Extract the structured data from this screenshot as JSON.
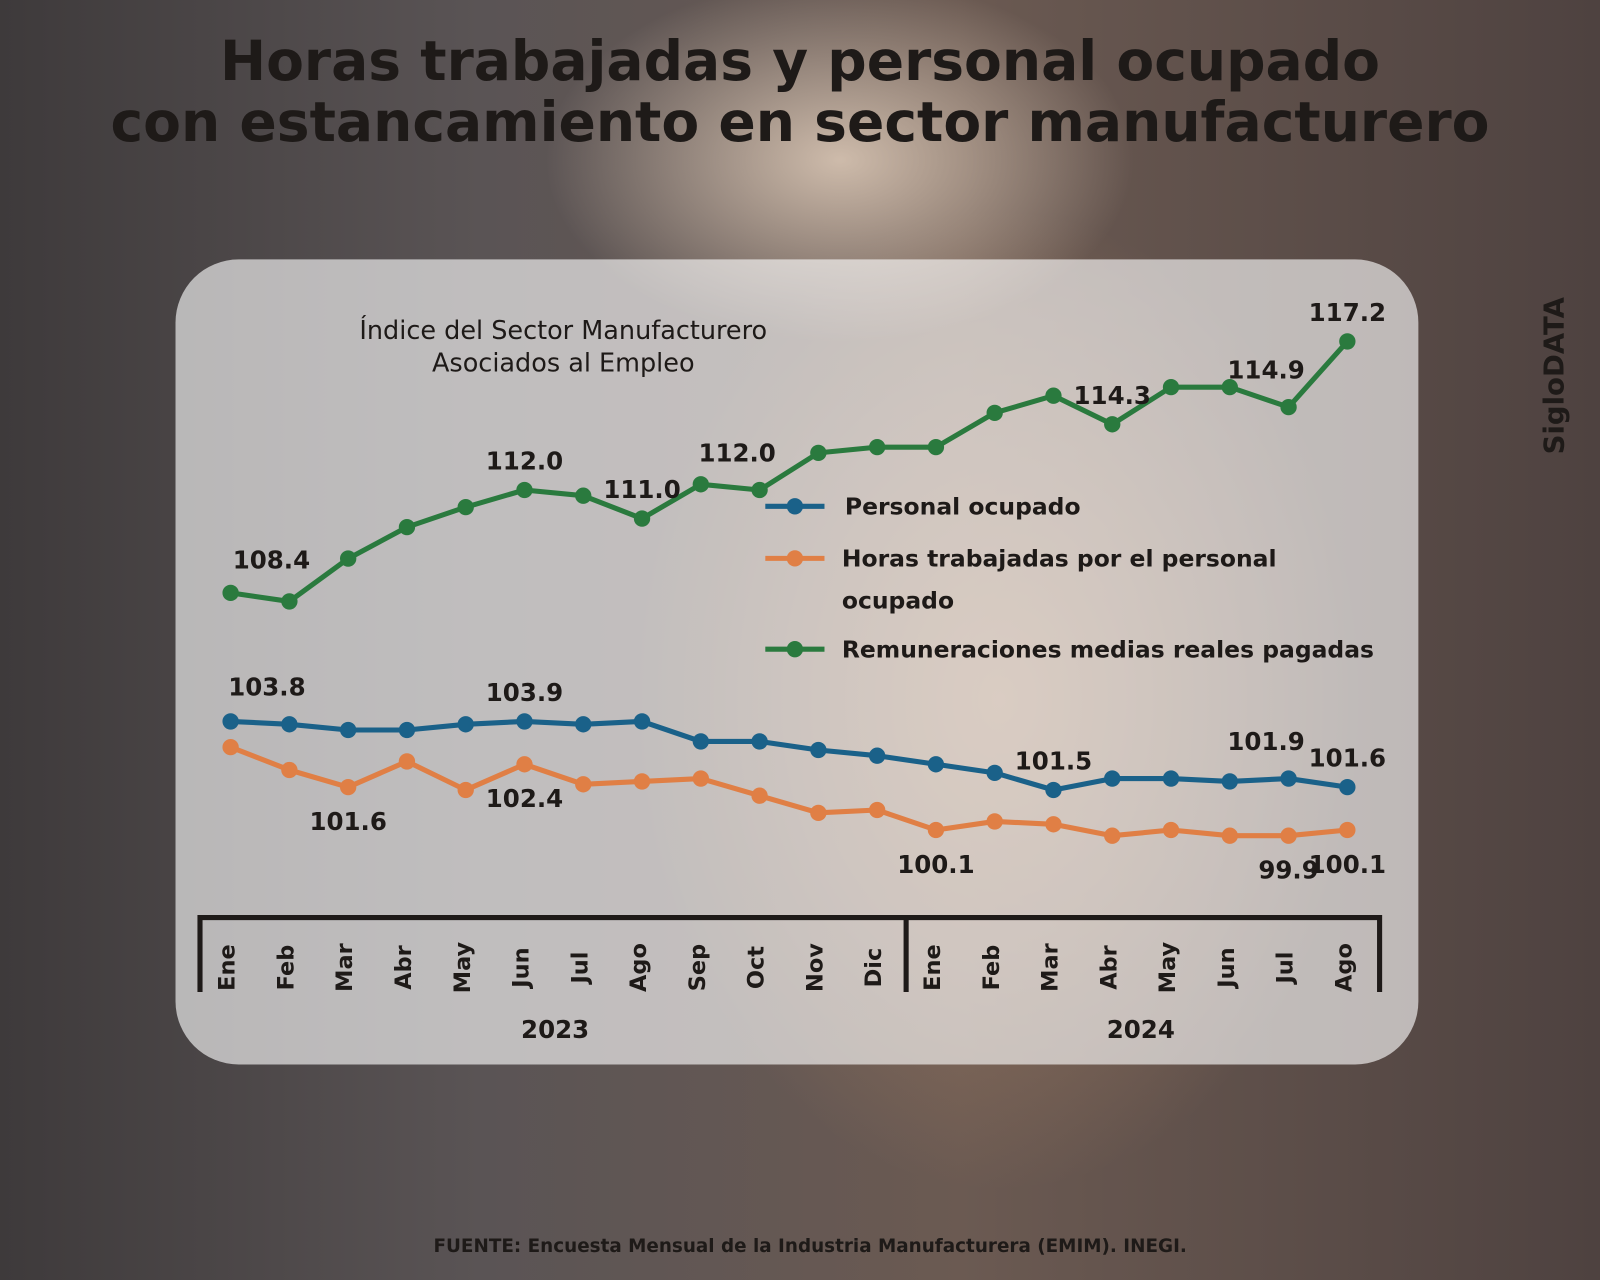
{
  "title_lines": [
    "Horas trabajadas y personal ocupado",
    "con estancamiento en sector manufacturero"
  ],
  "brand": "SigloDATA",
  "source": "FUENTE: Encuesta Mensual de la Industria Manufacturera (EMIM). INEGI.",
  "chart_data": {
    "type": "line",
    "title": [
      "Índice del Sector Manufacturero",
      "Asociados al Empleo"
    ],
    "categories": [
      "Ene",
      "Feb",
      "Mar",
      "Abr",
      "May",
      "Jun",
      "Jul",
      "Ago",
      "Sep",
      "Oct",
      "Nov",
      "Dic",
      "Ene",
      "Feb",
      "Mar",
      "Abr",
      "May",
      "Jun",
      "Jul",
      "Ago"
    ],
    "years": [
      {
        "label": "2023",
        "months": 12
      },
      {
        "label": "2024",
        "months": 8
      }
    ],
    "ylim": [
      99,
      118
    ],
    "grid": false,
    "legend_position": "center-right",
    "series": [
      {
        "name": "Personal ocupado",
        "color": "#1a6189",
        "values": [
          103.9,
          103.8,
          103.6,
          103.6,
          103.8,
          103.9,
          103.8,
          103.9,
          103.2,
          103.2,
          102.9,
          102.7,
          102.4,
          102.1,
          101.5,
          101.9,
          101.9,
          101.8,
          101.9,
          101.6
        ]
      },
      {
        "name": "Horas trabajadas por el personal ocupado",
        "legend_lines": [
          "Horas trabajadas por el personal",
          "ocupado"
        ],
        "color": "#e07f45",
        "values": [
          103.0,
          102.2,
          101.6,
          102.5,
          101.5,
          102.4,
          101.7,
          101.8,
          101.9,
          101.3,
          100.7,
          100.8,
          100.1,
          100.4,
          100.3,
          99.9,
          100.1,
          99.9,
          99.9,
          100.1
        ]
      },
      {
        "name": "Remuneraciones medias reales pagadas",
        "color": "#2a7a3e",
        "values": [
          108.4,
          108.1,
          109.6,
          110.7,
          111.4,
          112.0,
          111.8,
          111.0,
          112.2,
          112.0,
          113.3,
          113.5,
          113.5,
          114.7,
          115.3,
          114.3,
          115.6,
          115.6,
          114.9,
          117.2
        ]
      }
    ],
    "data_labels": [
      {
        "series": 2,
        "index": 0,
        "text": "108.4",
        "pos": "above-right"
      },
      {
        "series": 2,
        "index": 5,
        "text": "112.0",
        "pos": "above"
      },
      {
        "series": 2,
        "index": 7,
        "text": "111.0",
        "pos": "above"
      },
      {
        "series": 2,
        "index": 9,
        "text": "112.0",
        "pos": "above-left"
      },
      {
        "series": 2,
        "index": 15,
        "text": "114.3",
        "pos": "above"
      },
      {
        "series": 2,
        "index": 18,
        "text": "114.9",
        "pos": "above-left"
      },
      {
        "series": 2,
        "index": 19,
        "text": "117.2",
        "pos": "above"
      },
      {
        "series": 0,
        "index": 1,
        "text": "103.8",
        "pos": "above-left"
      },
      {
        "series": 0,
        "index": 5,
        "text": "103.9",
        "pos": "above"
      },
      {
        "series": 0,
        "index": 14,
        "text": "101.5",
        "pos": "above"
      },
      {
        "series": 0,
        "index": 18,
        "text": "101.9",
        "pos": "above-left"
      },
      {
        "series": 0,
        "index": 19,
        "text": "101.6",
        "pos": "above"
      },
      {
        "series": 1,
        "index": 2,
        "text": "101.6",
        "pos": "below"
      },
      {
        "series": 1,
        "index": 5,
        "text": "102.4",
        "pos": "below"
      },
      {
        "series": 1,
        "index": 12,
        "text": "100.1",
        "pos": "below"
      },
      {
        "series": 1,
        "index": 18,
        "text": "99.9",
        "pos": "below"
      },
      {
        "series": 1,
        "index": 19,
        "text": "100.1",
        "pos": "below"
      }
    ]
  }
}
